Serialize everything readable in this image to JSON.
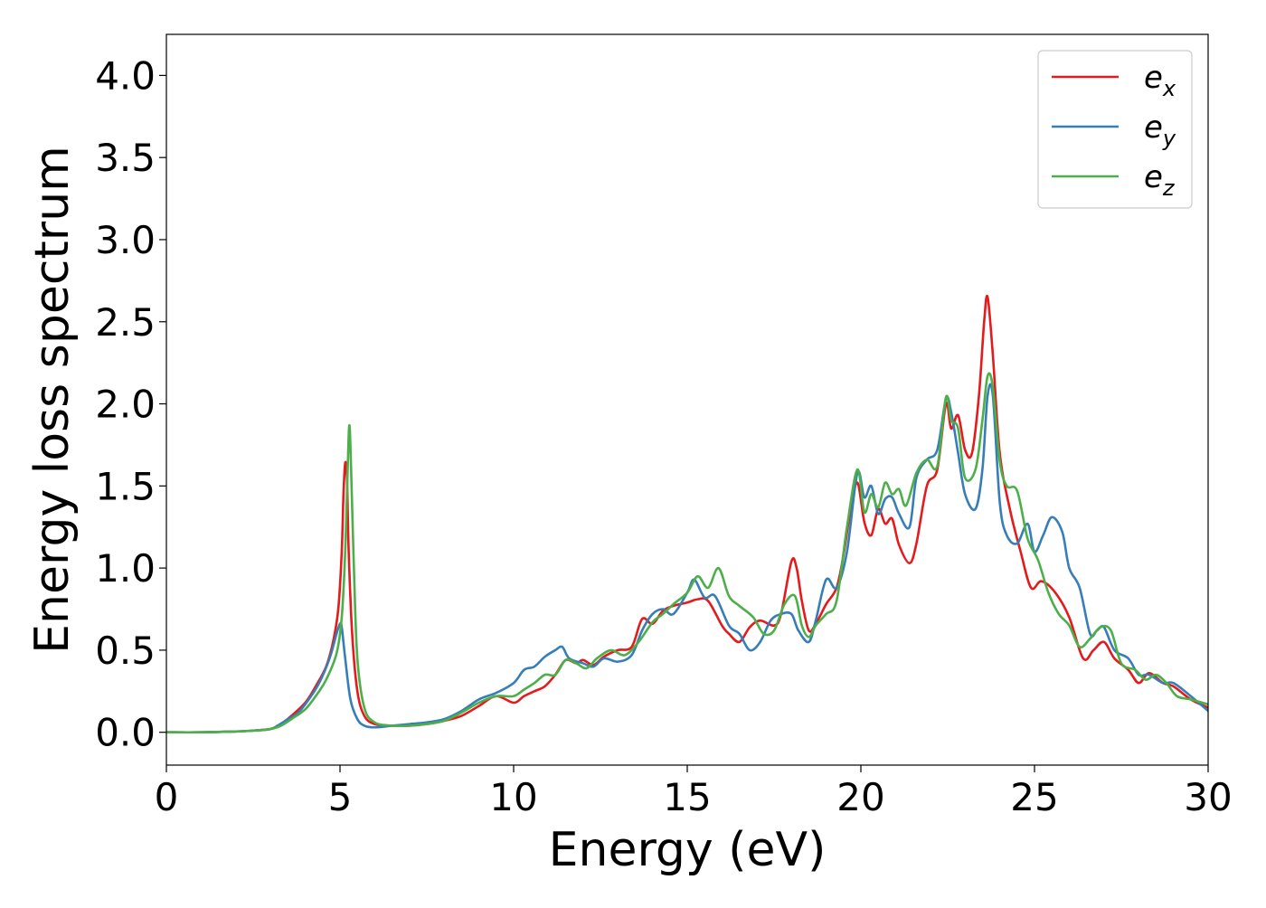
{
  "chart_data": {
    "type": "line",
    "xlabel": "Energy (eV)",
    "ylabel": "Energy loss spectrum",
    "xlim": [
      0,
      30
    ],
    "ylim": [
      -0.2,
      4.25
    ],
    "x_ticks": [
      0,
      5,
      10,
      15,
      20,
      25,
      30
    ],
    "y_ticks": [
      0.0,
      0.5,
      1.0,
      1.5,
      2.0,
      2.5,
      3.0,
      3.5,
      4.0
    ],
    "x_tick_labels": [
      "0",
      "5",
      "10",
      "15",
      "20",
      "25",
      "30"
    ],
    "y_tick_labels": [
      "0.0",
      "0.5",
      "1.0",
      "1.5",
      "2.0",
      "2.5",
      "3.0",
      "3.5",
      "4.0"
    ],
    "grid": false,
    "legend_position": "top-right",
    "series": [
      {
        "name": "e",
        "subscript": "x",
        "color": "#e41a1c",
        "x": [
          0,
          1,
          2,
          2.5,
          3,
          3.3,
          3.6,
          4,
          4.3,
          4.6,
          4.8,
          4.95,
          5.05,
          5.1,
          5.15,
          5.2,
          5.25,
          5.35,
          5.5,
          5.7,
          6,
          6.5,
          7,
          7.5,
          8,
          8.5,
          9,
          9.5,
          10,
          10.3,
          10.6,
          10.9,
          11.2,
          11.5,
          11.8,
          12,
          12.3,
          12.6,
          13,
          13.4,
          13.7,
          14,
          14.3,
          14.6,
          15,
          15.3,
          15.6,
          16,
          16.2,
          16.5,
          16.8,
          17.1,
          17.5,
          17.7,
          18,
          18.15,
          18.3,
          18.5,
          18.7,
          19,
          19.3,
          19.5,
          19.7,
          19.9,
          20.1,
          20.3,
          20.5,
          20.7,
          20.9,
          21.1,
          21.4,
          21.6,
          21.9,
          22.2,
          22.45,
          22.6,
          22.8,
          23.0,
          23.2,
          23.4,
          23.55,
          23.65,
          23.8,
          24.0,
          24.3,
          24.6,
          24.9,
          25.2,
          25.6,
          26.0,
          26.4,
          26.7,
          27.0,
          27.3,
          27.7,
          28.0,
          28.3,
          28.7,
          29.0,
          29.5,
          30
        ],
        "y": [
          0.0,
          0.0,
          0.005,
          0.01,
          0.02,
          0.05,
          0.1,
          0.18,
          0.28,
          0.4,
          0.55,
          0.75,
          1.1,
          1.45,
          1.64,
          1.55,
          1.1,
          0.6,
          0.25,
          0.1,
          0.05,
          0.04,
          0.04,
          0.05,
          0.07,
          0.1,
          0.16,
          0.22,
          0.18,
          0.22,
          0.25,
          0.28,
          0.35,
          0.44,
          0.42,
          0.44,
          0.41,
          0.46,
          0.5,
          0.52,
          0.69,
          0.66,
          0.74,
          0.77,
          0.79,
          0.81,
          0.8,
          0.65,
          0.6,
          0.55,
          0.64,
          0.68,
          0.65,
          0.72,
          1.04,
          1.0,
          0.8,
          0.62,
          0.66,
          0.78,
          0.88,
          1.08,
          1.35,
          1.52,
          1.28,
          1.2,
          1.36,
          1.27,
          1.3,
          1.14,
          1.03,
          1.15,
          1.5,
          1.6,
          2.0,
          1.85,
          1.93,
          1.72,
          1.7,
          2.05,
          2.5,
          2.65,
          2.3,
          1.7,
          1.35,
          1.1,
          0.88,
          0.92,
          0.85,
          0.7,
          0.45,
          0.5,
          0.55,
          0.45,
          0.38,
          0.3,
          0.36,
          0.3,
          0.28,
          0.2,
          0.15
        ]
      },
      {
        "name": "e",
        "subscript": "y",
        "color": "#377eb8",
        "x": [
          0,
          1,
          2,
          2.5,
          3,
          3.2,
          3.5,
          3.8,
          4.1,
          4.4,
          4.7,
          4.9,
          5.0,
          5.05,
          5.15,
          5.3,
          5.5,
          5.7,
          6,
          6.5,
          7,
          7.5,
          8,
          8.5,
          9,
          9.5,
          10,
          10.3,
          10.6,
          10.9,
          11.2,
          11.4,
          11.6,
          12,
          12.3,
          12.6,
          13,
          13.4,
          13.7,
          14,
          14.3,
          14.6,
          15,
          15.2,
          15.5,
          15.8,
          16.2,
          16.5,
          16.8,
          17.1,
          17.4,
          17.7,
          18,
          18.2,
          18.5,
          18.7,
          19,
          19.3,
          19.6,
          19.9,
          20.1,
          20.3,
          20.5,
          20.7,
          20.9,
          21.1,
          21.4,
          21.6,
          21.9,
          22.2,
          22.45,
          22.6,
          22.8,
          23.0,
          23.3,
          23.5,
          23.65,
          23.8,
          24.0,
          24.2,
          24.5,
          24.8,
          25.0,
          25.25,
          25.5,
          25.8,
          26.0,
          26.3,
          26.6,
          26.8,
          27.0,
          27.3,
          27.7,
          28.0,
          28.3,
          28.7,
          29.0,
          29.5,
          30
        ],
        "y": [
          0.0,
          0.0,
          0.005,
          0.01,
          0.02,
          0.04,
          0.08,
          0.12,
          0.2,
          0.3,
          0.45,
          0.6,
          0.66,
          0.64,
          0.45,
          0.2,
          0.08,
          0.04,
          0.03,
          0.04,
          0.05,
          0.06,
          0.08,
          0.13,
          0.2,
          0.24,
          0.3,
          0.38,
          0.4,
          0.46,
          0.5,
          0.52,
          0.45,
          0.42,
          0.4,
          0.45,
          0.43,
          0.47,
          0.62,
          0.72,
          0.75,
          0.72,
          0.85,
          0.93,
          0.82,
          0.83,
          0.65,
          0.6,
          0.5,
          0.55,
          0.68,
          0.72,
          0.72,
          0.62,
          0.55,
          0.68,
          0.93,
          0.88,
          1.1,
          1.58,
          1.43,
          1.5,
          1.33,
          1.42,
          1.43,
          1.33,
          1.25,
          1.55,
          1.66,
          1.72,
          2.03,
          1.95,
          1.7,
          1.45,
          1.36,
          1.6,
          2.05,
          2.05,
          1.4,
          1.2,
          1.15,
          1.27,
          1.1,
          1.2,
          1.31,
          1.22,
          1.0,
          0.88,
          0.6,
          0.62,
          0.64,
          0.5,
          0.45,
          0.35,
          0.35,
          0.3,
          0.3,
          0.22,
          0.13
        ]
      },
      {
        "name": "e",
        "subscript": "z",
        "color": "#4daf4a",
        "x": [
          0,
          1,
          2,
          2.5,
          3,
          3.3,
          3.6,
          4,
          4.3,
          4.6,
          4.9,
          5.05,
          5.15,
          5.22,
          5.27,
          5.32,
          5.4,
          5.5,
          5.7,
          6,
          6.5,
          7,
          7.5,
          8,
          8.5,
          9,
          9.5,
          10,
          10.3,
          10.6,
          10.9,
          11.2,
          11.5,
          11.8,
          12.1,
          12.4,
          12.8,
          13.2,
          13.6,
          14,
          14.3,
          14.6,
          15,
          15.3,
          15.6,
          15.9,
          16.2,
          16.5,
          16.9,
          17.2,
          17.5,
          17.8,
          18.1,
          18.3,
          18.5,
          18.7,
          19,
          19.3,
          19.6,
          19.9,
          20.1,
          20.3,
          20.5,
          20.7,
          20.9,
          21.1,
          21.3,
          21.6,
          21.9,
          22.2,
          22.45,
          22.6,
          22.8,
          23.0,
          23.3,
          23.5,
          23.65,
          23.8,
          24.0,
          24.2,
          24.5,
          24.8,
          25.1,
          25.4,
          25.7,
          26.0,
          26.3,
          26.6,
          26.9,
          27.2,
          27.5,
          27.9,
          28.2,
          28.5,
          28.8,
          29.1,
          29.5,
          30
        ],
        "y": [
          0.0,
          0.0,
          0.005,
          0.01,
          0.02,
          0.04,
          0.08,
          0.14,
          0.22,
          0.32,
          0.48,
          0.7,
          1.1,
          1.6,
          1.87,
          1.6,
          1.0,
          0.45,
          0.15,
          0.06,
          0.04,
          0.04,
          0.05,
          0.07,
          0.12,
          0.18,
          0.22,
          0.22,
          0.26,
          0.3,
          0.35,
          0.35,
          0.44,
          0.42,
          0.39,
          0.45,
          0.5,
          0.47,
          0.55,
          0.67,
          0.72,
          0.78,
          0.85,
          0.95,
          0.88,
          1.0,
          0.83,
          0.77,
          0.7,
          0.6,
          0.62,
          0.78,
          0.83,
          0.65,
          0.58,
          0.65,
          0.72,
          0.8,
          1.25,
          1.6,
          1.34,
          1.45,
          1.37,
          1.52,
          1.45,
          1.48,
          1.38,
          1.58,
          1.66,
          1.62,
          2.04,
          1.9,
          1.85,
          1.55,
          1.6,
          1.9,
          2.17,
          2.1,
          1.65,
          1.5,
          1.47,
          1.18,
          1.05,
          0.85,
          0.72,
          0.65,
          0.52,
          0.57,
          0.64,
          0.62,
          0.42,
          0.38,
          0.32,
          0.35,
          0.3,
          0.22,
          0.2,
          0.17
        ]
      }
    ]
  }
}
